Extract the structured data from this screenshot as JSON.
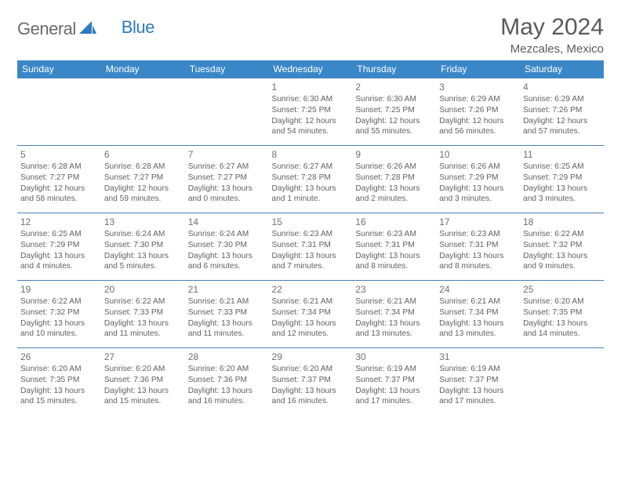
{
  "brand": {
    "part1": "General",
    "part2": "Blue"
  },
  "title": {
    "month": "May 2024",
    "location": "Mezcales, Mexico"
  },
  "colors": {
    "header_bg": "#3a87c8",
    "header_text": "#ffffff",
    "border": "#4a80b0",
    "text": "#616161",
    "logo_blue": "#2d7bc0"
  },
  "day_headers": [
    "Sunday",
    "Monday",
    "Tuesday",
    "Wednesday",
    "Thursday",
    "Friday",
    "Saturday"
  ],
  "weeks": [
    [
      {
        "num": "",
        "sunrise": "",
        "sunset": "",
        "daylight": ""
      },
      {
        "num": "",
        "sunrise": "",
        "sunset": "",
        "daylight": ""
      },
      {
        "num": "",
        "sunrise": "",
        "sunset": "",
        "daylight": ""
      },
      {
        "num": "1",
        "sunrise": "Sunrise: 6:30 AM",
        "sunset": "Sunset: 7:25 PM",
        "daylight": "Daylight: 12 hours and 54 minutes."
      },
      {
        "num": "2",
        "sunrise": "Sunrise: 6:30 AM",
        "sunset": "Sunset: 7:25 PM",
        "daylight": "Daylight: 12 hours and 55 minutes."
      },
      {
        "num": "3",
        "sunrise": "Sunrise: 6:29 AM",
        "sunset": "Sunset: 7:26 PM",
        "daylight": "Daylight: 12 hours and 56 minutes."
      },
      {
        "num": "4",
        "sunrise": "Sunrise: 6:29 AM",
        "sunset": "Sunset: 7:26 PM",
        "daylight": "Daylight: 12 hours and 57 minutes."
      }
    ],
    [
      {
        "num": "5",
        "sunrise": "Sunrise: 6:28 AM",
        "sunset": "Sunset: 7:27 PM",
        "daylight": "Daylight: 12 hours and 58 minutes."
      },
      {
        "num": "6",
        "sunrise": "Sunrise: 6:28 AM",
        "sunset": "Sunset: 7:27 PM",
        "daylight": "Daylight: 12 hours and 59 minutes."
      },
      {
        "num": "7",
        "sunrise": "Sunrise: 6:27 AM",
        "sunset": "Sunset: 7:27 PM",
        "daylight": "Daylight: 13 hours and 0 minutes."
      },
      {
        "num": "8",
        "sunrise": "Sunrise: 6:27 AM",
        "sunset": "Sunset: 7:28 PM",
        "daylight": "Daylight: 13 hours and 1 minute."
      },
      {
        "num": "9",
        "sunrise": "Sunrise: 6:26 AM",
        "sunset": "Sunset: 7:28 PM",
        "daylight": "Daylight: 13 hours and 2 minutes."
      },
      {
        "num": "10",
        "sunrise": "Sunrise: 6:26 AM",
        "sunset": "Sunset: 7:29 PM",
        "daylight": "Daylight: 13 hours and 3 minutes."
      },
      {
        "num": "11",
        "sunrise": "Sunrise: 6:25 AM",
        "sunset": "Sunset: 7:29 PM",
        "daylight": "Daylight: 13 hours and 3 minutes."
      }
    ],
    [
      {
        "num": "12",
        "sunrise": "Sunrise: 6:25 AM",
        "sunset": "Sunset: 7:29 PM",
        "daylight": "Daylight: 13 hours and 4 minutes."
      },
      {
        "num": "13",
        "sunrise": "Sunrise: 6:24 AM",
        "sunset": "Sunset: 7:30 PM",
        "daylight": "Daylight: 13 hours and 5 minutes."
      },
      {
        "num": "14",
        "sunrise": "Sunrise: 6:24 AM",
        "sunset": "Sunset: 7:30 PM",
        "daylight": "Daylight: 13 hours and 6 minutes."
      },
      {
        "num": "15",
        "sunrise": "Sunrise: 6:23 AM",
        "sunset": "Sunset: 7:31 PM",
        "daylight": "Daylight: 13 hours and 7 minutes."
      },
      {
        "num": "16",
        "sunrise": "Sunrise: 6:23 AM",
        "sunset": "Sunset: 7:31 PM",
        "daylight": "Daylight: 13 hours and 8 minutes."
      },
      {
        "num": "17",
        "sunrise": "Sunrise: 6:23 AM",
        "sunset": "Sunset: 7:31 PM",
        "daylight": "Daylight: 13 hours and 8 minutes."
      },
      {
        "num": "18",
        "sunrise": "Sunrise: 6:22 AM",
        "sunset": "Sunset: 7:32 PM",
        "daylight": "Daylight: 13 hours and 9 minutes."
      }
    ],
    [
      {
        "num": "19",
        "sunrise": "Sunrise: 6:22 AM",
        "sunset": "Sunset: 7:32 PM",
        "daylight": "Daylight: 13 hours and 10 minutes."
      },
      {
        "num": "20",
        "sunrise": "Sunrise: 6:22 AM",
        "sunset": "Sunset: 7:33 PM",
        "daylight": "Daylight: 13 hours and 11 minutes."
      },
      {
        "num": "21",
        "sunrise": "Sunrise: 6:21 AM",
        "sunset": "Sunset: 7:33 PM",
        "daylight": "Daylight: 13 hours and 11 minutes."
      },
      {
        "num": "22",
        "sunrise": "Sunrise: 6:21 AM",
        "sunset": "Sunset: 7:34 PM",
        "daylight": "Daylight: 13 hours and 12 minutes."
      },
      {
        "num": "23",
        "sunrise": "Sunrise: 6:21 AM",
        "sunset": "Sunset: 7:34 PM",
        "daylight": "Daylight: 13 hours and 13 minutes."
      },
      {
        "num": "24",
        "sunrise": "Sunrise: 6:21 AM",
        "sunset": "Sunset: 7:34 PM",
        "daylight": "Daylight: 13 hours and 13 minutes."
      },
      {
        "num": "25",
        "sunrise": "Sunrise: 6:20 AM",
        "sunset": "Sunset: 7:35 PM",
        "daylight": "Daylight: 13 hours and 14 minutes."
      }
    ],
    [
      {
        "num": "26",
        "sunrise": "Sunrise: 6:20 AM",
        "sunset": "Sunset: 7:35 PM",
        "daylight": "Daylight: 13 hours and 15 minutes."
      },
      {
        "num": "27",
        "sunrise": "Sunrise: 6:20 AM",
        "sunset": "Sunset: 7:36 PM",
        "daylight": "Daylight: 13 hours and 15 minutes."
      },
      {
        "num": "28",
        "sunrise": "Sunrise: 6:20 AM",
        "sunset": "Sunset: 7:36 PM",
        "daylight": "Daylight: 13 hours and 16 minutes."
      },
      {
        "num": "29",
        "sunrise": "Sunrise: 6:20 AM",
        "sunset": "Sunset: 7:37 PM",
        "daylight": "Daylight: 13 hours and 16 minutes."
      },
      {
        "num": "30",
        "sunrise": "Sunrise: 6:19 AM",
        "sunset": "Sunset: 7:37 PM",
        "daylight": "Daylight: 13 hours and 17 minutes."
      },
      {
        "num": "31",
        "sunrise": "Sunrise: 6:19 AM",
        "sunset": "Sunset: 7:37 PM",
        "daylight": "Daylight: 13 hours and 17 minutes."
      },
      {
        "num": "",
        "sunrise": "",
        "sunset": "",
        "daylight": ""
      }
    ]
  ]
}
